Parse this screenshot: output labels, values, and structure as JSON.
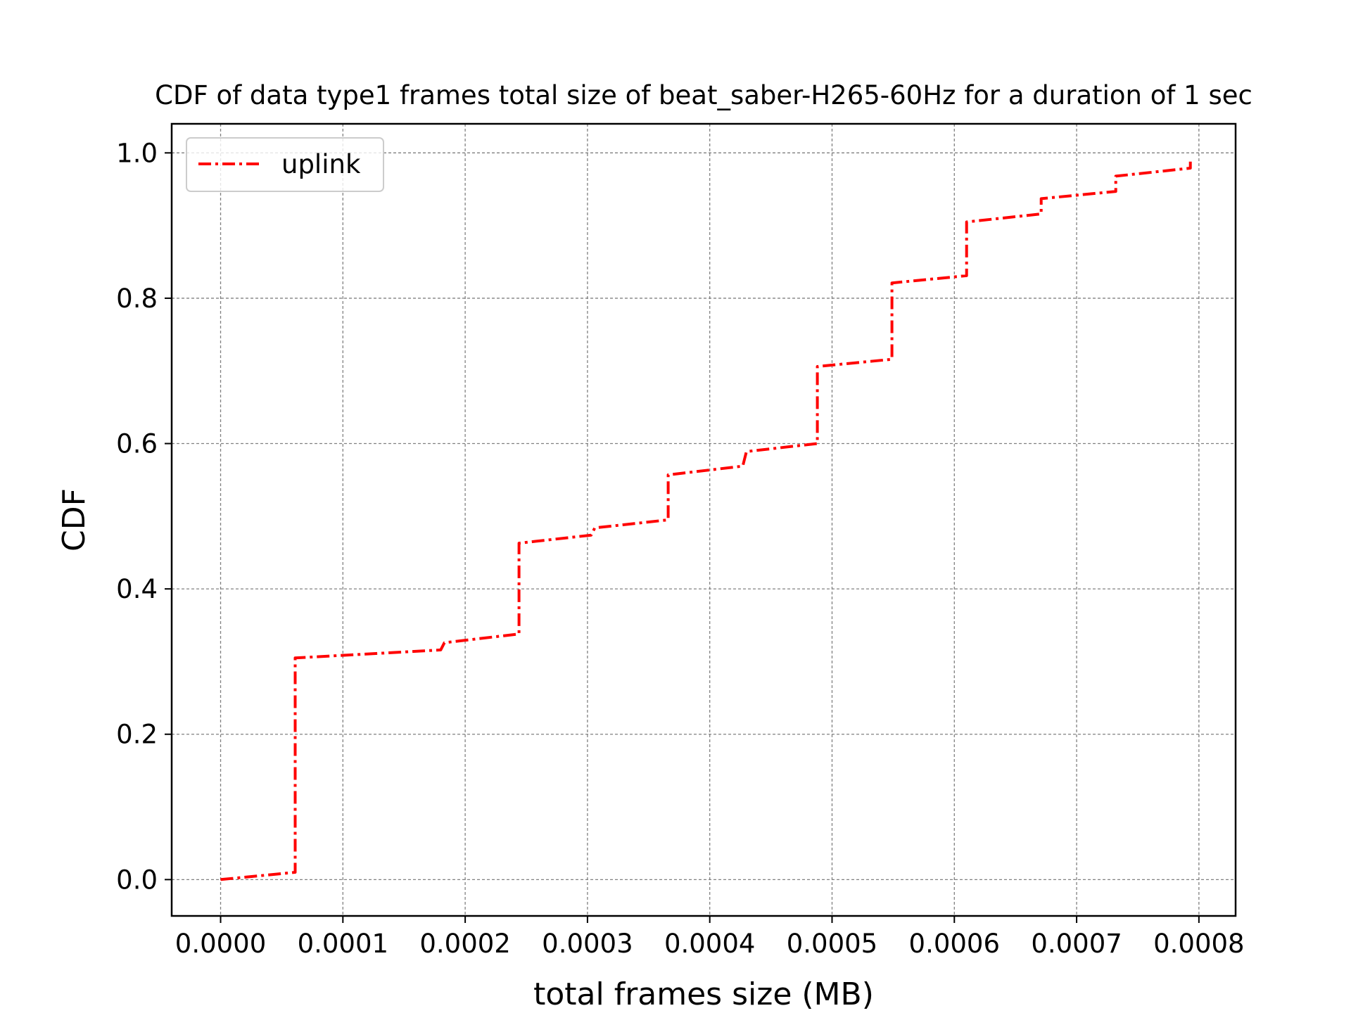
{
  "chart_data": {
    "type": "line",
    "title": "CDF of data type1 frames total size of beat_saber-H265-60Hz for a duration of 1 sec",
    "xlabel": "total frames size (MB)",
    "ylabel": "CDF",
    "xlim": [
      -4e-05,
      0.00083
    ],
    "ylim": [
      -0.05,
      1.04
    ],
    "xticks": [
      0.0,
      0.0001,
      0.0002,
      0.0003,
      0.0004,
      0.0005,
      0.0006,
      0.0007,
      0.0008
    ],
    "xtick_labels": [
      "0.0000",
      "0.0001",
      "0.0002",
      "0.0003",
      "0.0004",
      "0.0005",
      "0.0006",
      "0.0007",
      "0.0008"
    ],
    "yticks": [
      0.0,
      0.2,
      0.4,
      0.6,
      0.8,
      1.0
    ],
    "ytick_labels": [
      "0.0",
      "0.2",
      "0.4",
      "0.6",
      "0.8",
      "1.0"
    ],
    "grid": true,
    "legend_position": "top-left",
    "series": [
      {
        "name": "uplink",
        "color": "#ff0000",
        "line_style": "dash-dot",
        "points": [
          [
            0.0,
            0.0
          ],
          [
            6.1e-05,
            0.01
          ],
          [
            6.1e-05,
            0.305
          ],
          [
            0.00018,
            0.316
          ],
          [
            0.000183,
            0.326
          ],
          [
            0.000244,
            0.338
          ],
          [
            0.000244,
            0.463
          ],
          [
            0.000303,
            0.474
          ],
          [
            0.000306,
            0.484
          ],
          [
            0.000366,
            0.495
          ],
          [
            0.000366,
            0.557
          ],
          [
            0.000427,
            0.569
          ],
          [
            0.00043,
            0.589
          ],
          [
            0.000488,
            0.6
          ],
          [
            0.000488,
            0.706
          ],
          [
            0.000549,
            0.716
          ],
          [
            0.000549,
            0.821
          ],
          [
            0.00061,
            0.831
          ],
          [
            0.00061,
            0.905
          ],
          [
            0.000671,
            0.916
          ],
          [
            0.000671,
            0.937
          ],
          [
            0.000732,
            0.947
          ],
          [
            0.000732,
            0.968
          ],
          [
            0.000793,
            0.979
          ],
          [
            0.000793,
            0.988
          ]
        ]
      }
    ]
  }
}
